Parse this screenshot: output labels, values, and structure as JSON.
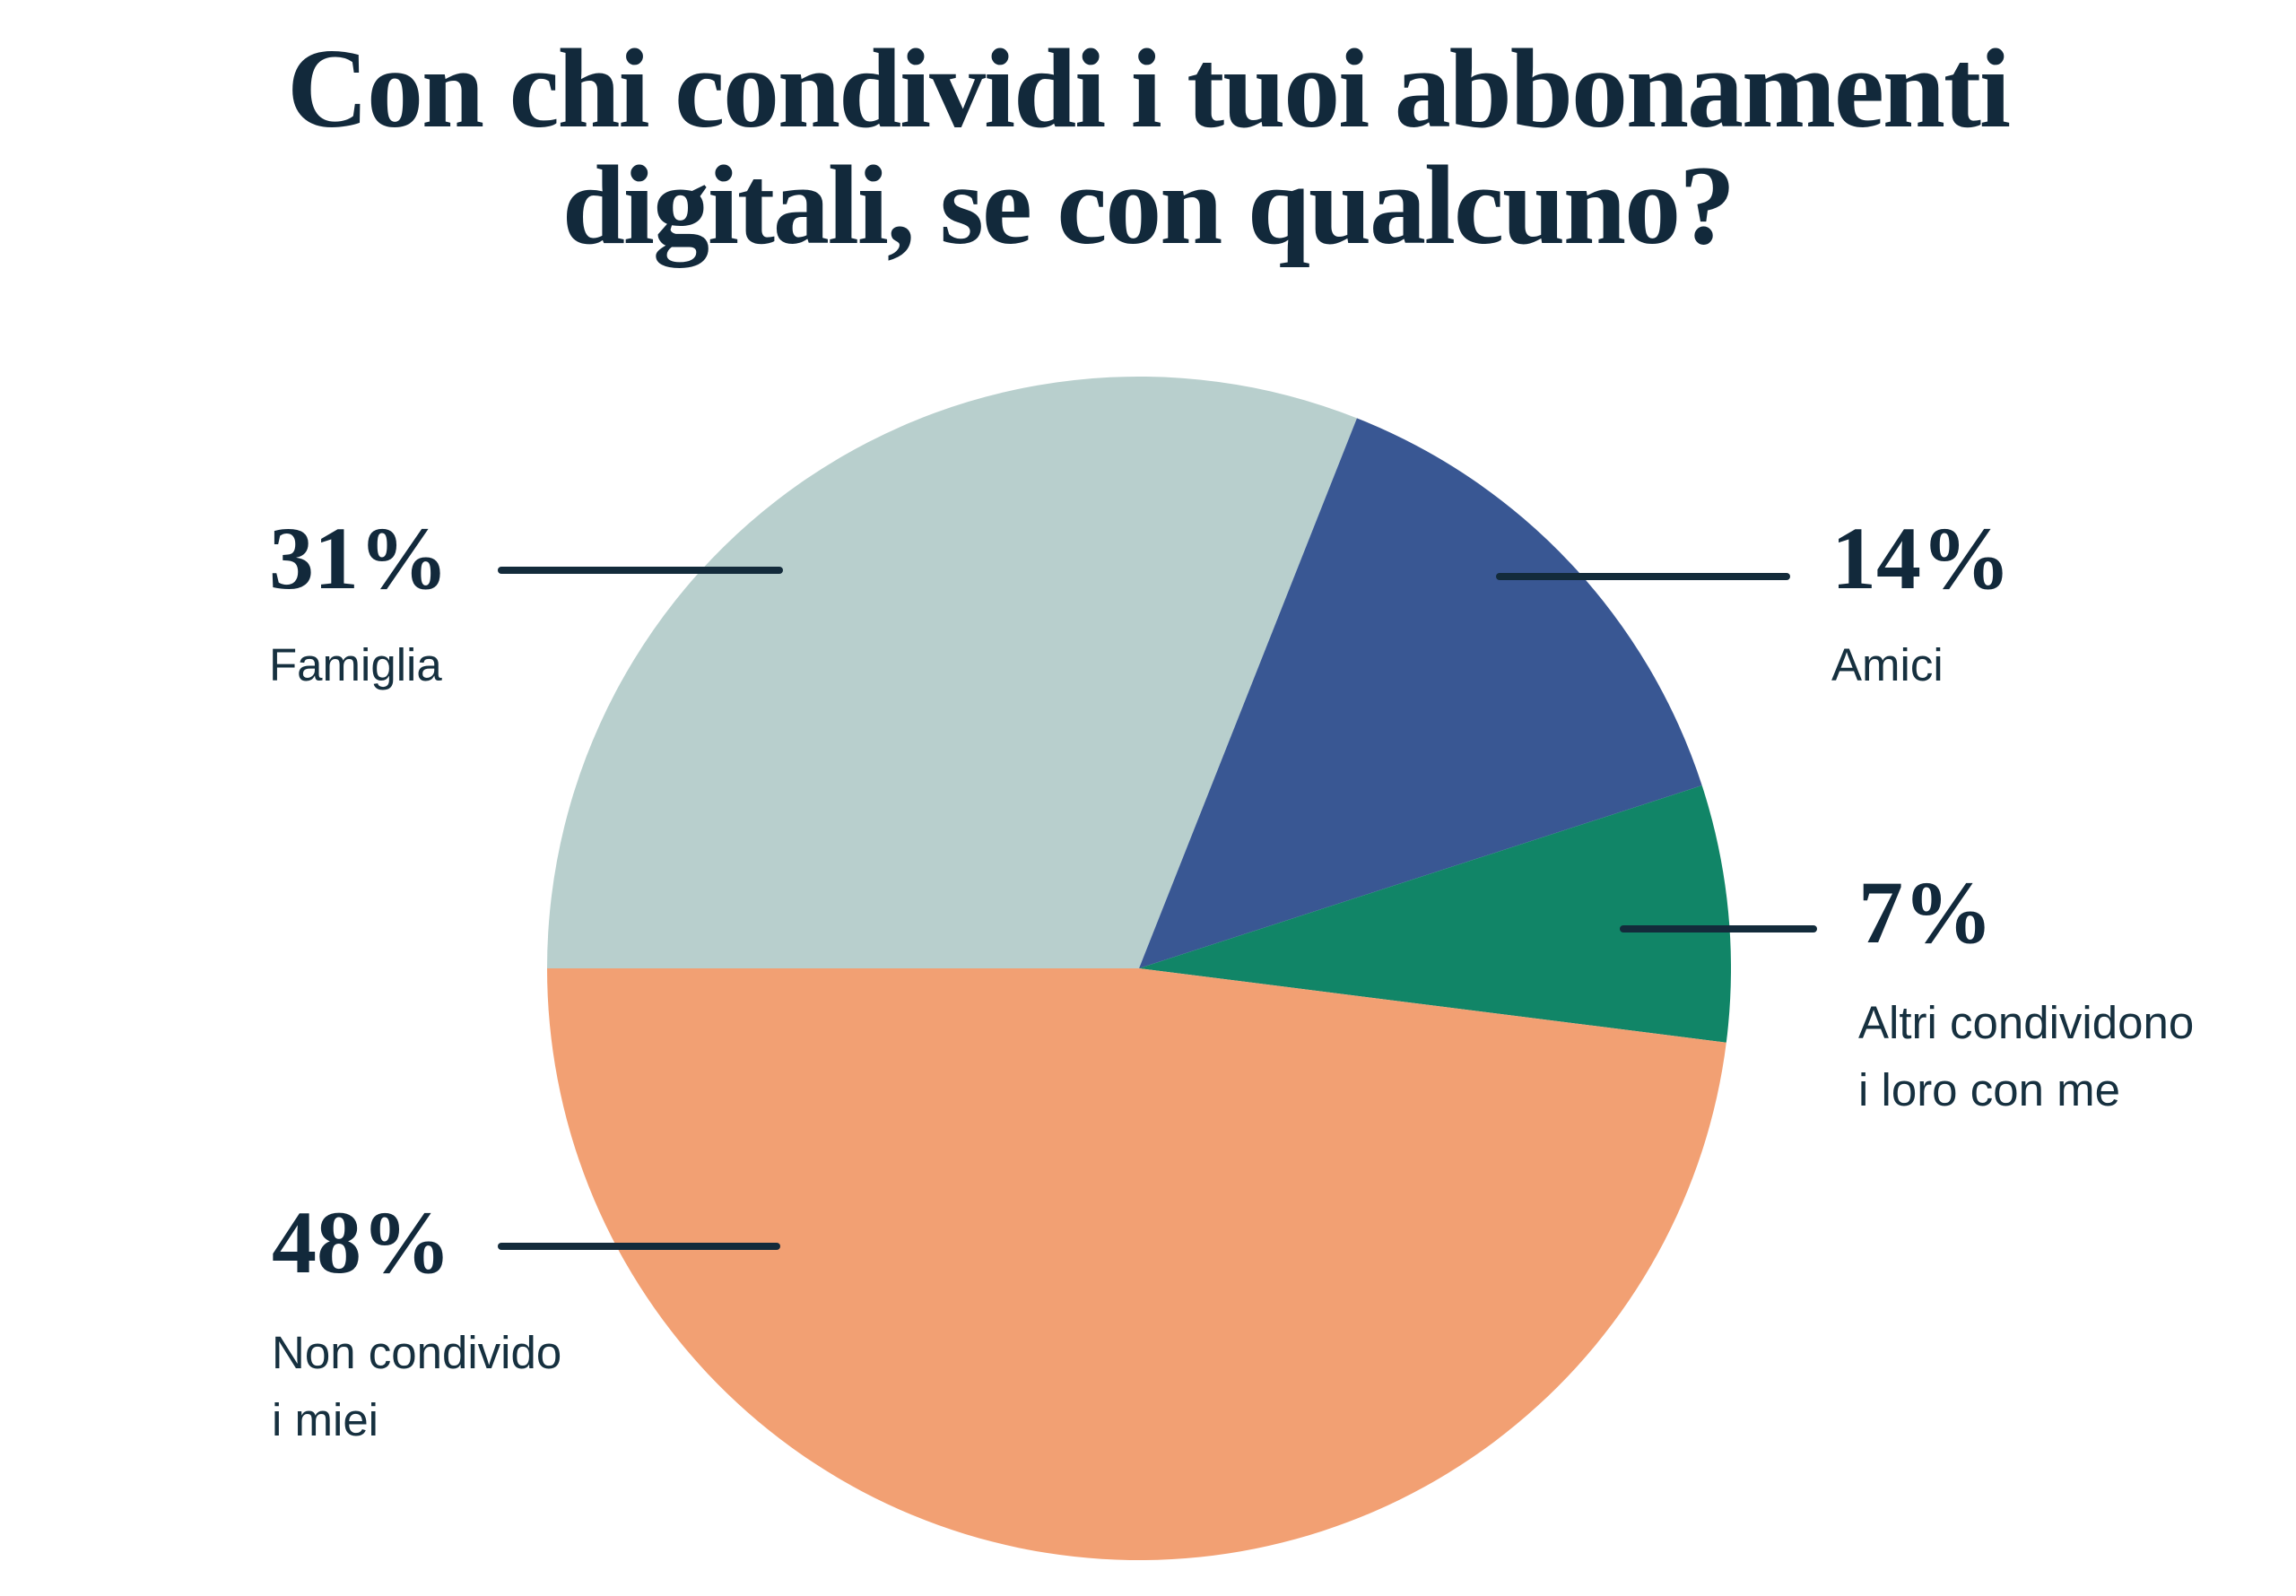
{
  "title": {
    "line1": "Con chi condividi i tuoi abbonamenti",
    "line2": "digitali, se con qualcuno?"
  },
  "colors": {
    "background": "#FFFFFF",
    "text_navy": "#12293B",
    "leader_line": "#132B3B",
    "slice_famiglia": "#B8CFCD",
    "slice_amici": "#395793",
    "slice_altri": "#118567",
    "slice_non_condivido": "#F2A073"
  },
  "chart_data": {
    "type": "pie",
    "title": "Con chi condividi i tuoi abbonamenti digitali, se con qualcuno?",
    "unit": "percent",
    "start_angle_deg": 180,
    "direction": "clockwise",
    "legend": "none (callout labels with leader lines)",
    "slices": [
      {
        "label": "Famiglia",
        "value": 31,
        "color": "#B8CFCD"
      },
      {
        "label": "Amici",
        "value": 14,
        "color": "#395793"
      },
      {
        "label": "Altri condividono i loro con me",
        "value": 7,
        "color": "#118567"
      },
      {
        "label": "Non condivido i miei",
        "value": 48,
        "color": "#F2A073"
      }
    ]
  },
  "callouts": [
    {
      "id": "famiglia",
      "pct": "31%",
      "lines": [
        "Famiglia"
      ]
    },
    {
      "id": "amici",
      "pct": "14%",
      "lines": [
        "Amici"
      ]
    },
    {
      "id": "altri",
      "pct": "7%",
      "lines": [
        "Altri condividono",
        "i loro con me"
      ]
    },
    {
      "id": "noncond",
      "pct": "48%",
      "lines": [
        "Non condivido",
        "i miei"
      ]
    }
  ]
}
